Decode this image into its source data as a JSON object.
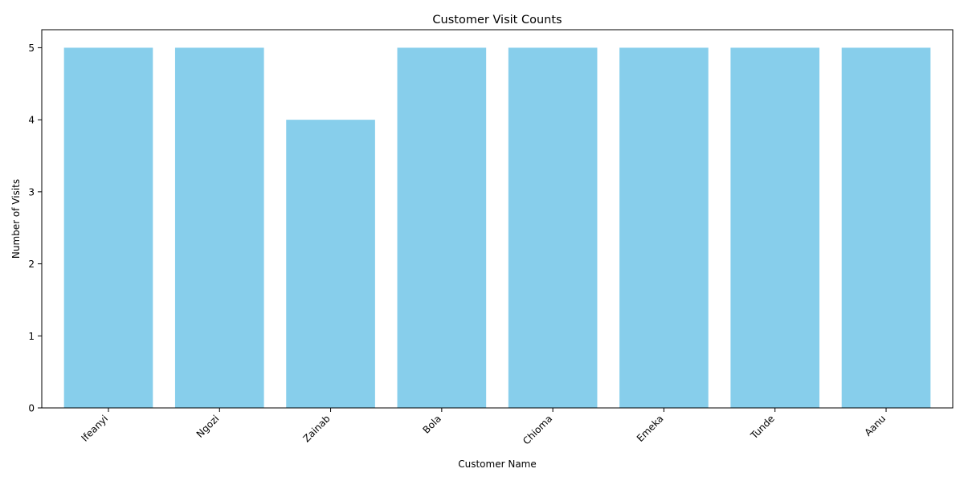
{
  "chart_data": {
    "type": "bar",
    "title": "Customer Visit Counts",
    "xlabel": "Customer Name",
    "ylabel": "Number of Visits",
    "categories": [
      "Ifeanyi",
      "Ngozi",
      "Zainab",
      "Bola",
      "Chioma",
      "Emeka",
      "Tunde",
      "Aanu"
    ],
    "values": [
      5,
      5,
      4,
      5,
      5,
      5,
      5,
      5
    ],
    "ylim": [
      0,
      5.25
    ],
    "yticks": [
      "0",
      "1",
      "2",
      "3",
      "4",
      "5"
    ],
    "bar_color": "#87CEEB",
    "grid": false,
    "legend": "none",
    "x_tick_rotation": "45deg"
  }
}
